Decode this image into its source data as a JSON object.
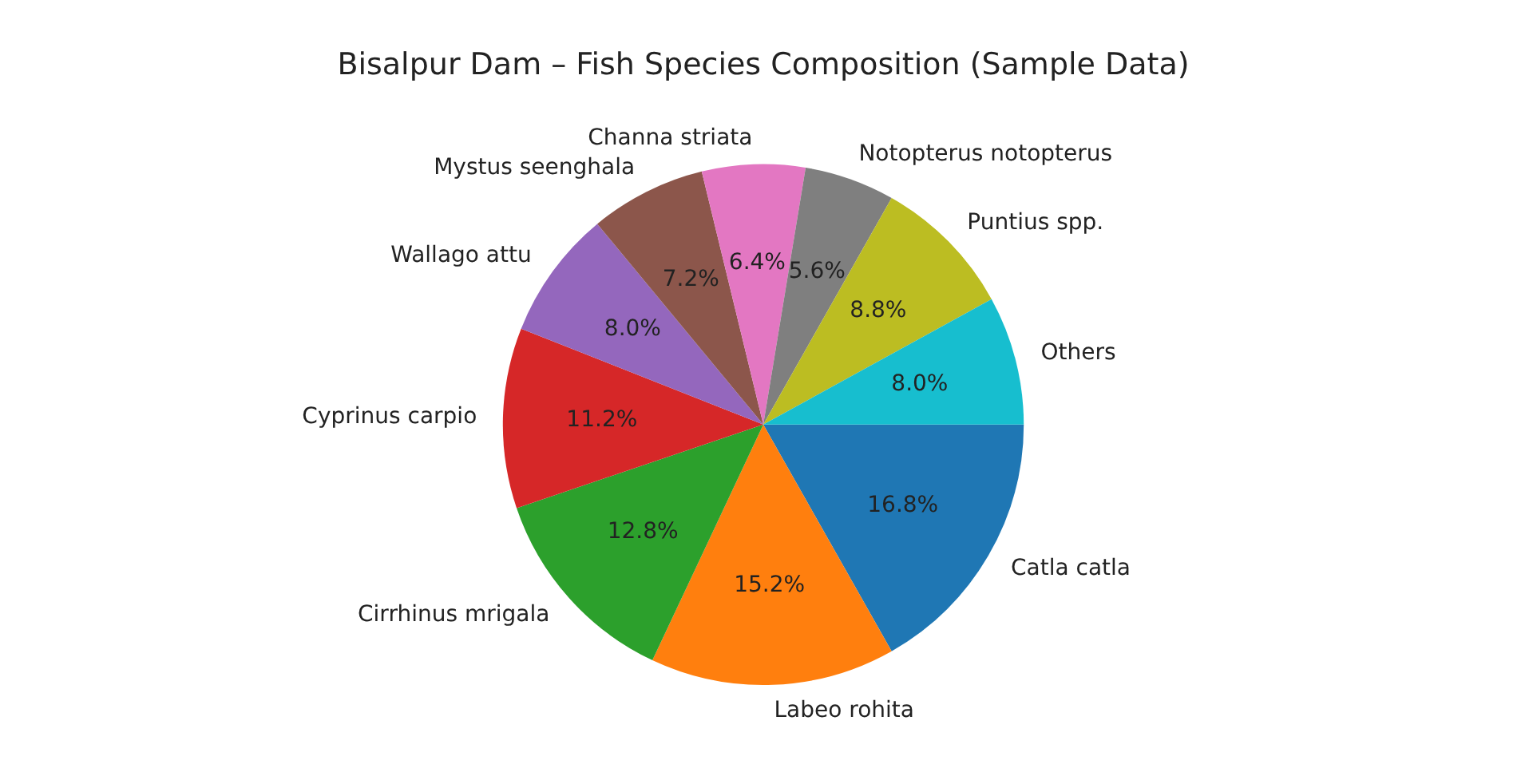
{
  "chart_data": {
    "type": "pie",
    "title": "Bisalpur Dam – Fish Species Composition (Sample Data)",
    "categories": [
      "Catla catla",
      "Labeo rohita",
      "Cirrhinus mrigala",
      "Cyprinus carpio",
      "Wallago attu",
      "Mystus seenghala",
      "Channa striata",
      "Notopterus notopterus",
      "Puntius spp.",
      "Others"
    ],
    "values": [
      16.8,
      15.2,
      12.8,
      11.2,
      8.0,
      7.2,
      6.4,
      5.6,
      8.8,
      8.0
    ],
    "value_labels": [
      "16.8%",
      "15.2%",
      "12.8%",
      "11.2%",
      "8.0%",
      "7.2%",
      "6.4%",
      "5.6%",
      "8.8%",
      "8.0%"
    ],
    "colors": [
      "#1f77b4",
      "#ff7f0e",
      "#2ca02c",
      "#d62728",
      "#9467bd",
      "#8c564b",
      "#e377c2",
      "#7f7f7f",
      "#bcbd22",
      "#17becf"
    ],
    "legend": false
  }
}
